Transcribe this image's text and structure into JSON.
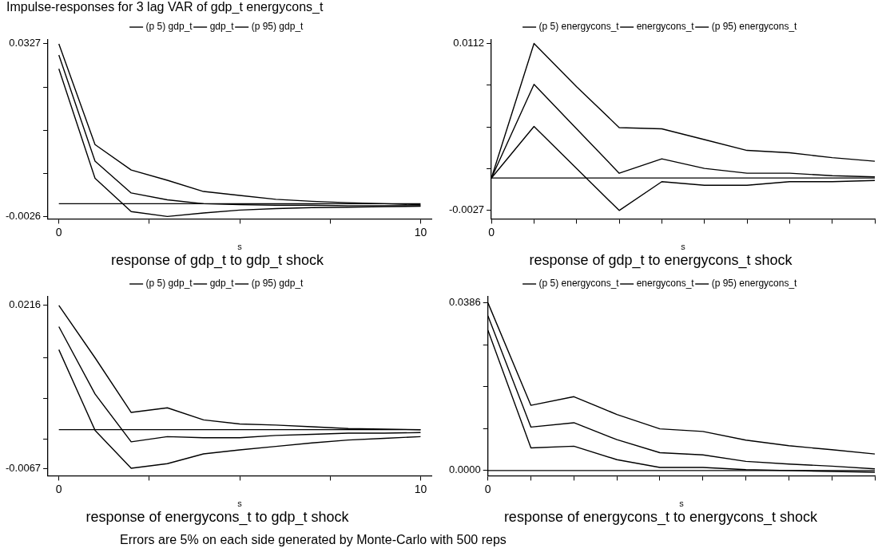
{
  "chart_data": [
    {
      "type": "line",
      "title": "response of gdp_t to gdp_t shock",
      "xlabel": "s",
      "annotations": [
        "Impulse-responses for 3 lag VAR of gdp_t energycons_t"
      ],
      "x": [
        0,
        1,
        2,
        3,
        4,
        5,
        6,
        7,
        8,
        9,
        10
      ],
      "xlim": [
        -0.3,
        10.3
      ],
      "xticks": [
        {
          "value": 0,
          "label": "0"
        },
        {
          "value": 2.5,
          "label": null
        },
        {
          "value": 5,
          "label": null
        },
        {
          "value": 7.5,
          "label": null
        },
        {
          "value": 10,
          "label": "10"
        }
      ],
      "ylim": [
        -0.0031,
        0.0335
      ],
      "yticks": [
        -0.0026,
        {
          "value": 0.006225,
          "label": null
        },
        {
          "value": 0.01505,
          "label": null
        },
        {
          "value": 0.023875,
          "label": null
        },
        0.0327
      ],
      "grid": false,
      "legend": "top",
      "marker": "none",
      "ref_lines": [
        {
          "axis": "y",
          "value": 0,
          "color": "#000000"
        }
      ],
      "series": [
        {
          "name": "(p 5) gdp_t",
          "color": "#000000",
          "values": [
            0.0276,
            0.0052,
            -0.0016,
            -0.0026,
            -0.0019,
            -0.0013,
            -0.001,
            -0.0008,
            -0.0007,
            -0.0006,
            -0.0005
          ]
        },
        {
          "name": "gdp_t",
          "color": "#000000",
          "values": [
            0.0304,
            0.0087,
            0.0022,
            0.0008,
            0.0,
            -0.0002,
            -0.0003,
            -0.0003,
            -0.0004,
            -0.0004,
            -0.0004
          ]
        },
        {
          "name": "(p 95) gdp_t",
          "color": "#000000",
          "values": [
            0.0327,
            0.0121,
            0.0069,
            0.0048,
            0.0025,
            0.0017,
            0.0009,
            0.0005,
            0.0002,
            0.0,
            -0.0002
          ]
        }
      ]
    },
    {
      "type": "line",
      "title": "response of gdp_t to energycons_t shock",
      "xlabel": "s",
      "categories": [
        "0",
        null,
        null,
        null,
        null,
        null,
        null,
        null,
        null,
        null
      ],
      "ylim": [
        -0.0034,
        0.0115
      ],
      "yticks": [
        -0.0027,
        {
          "value": 0.000775,
          "label": null
        },
        {
          "value": 0.00425,
          "label": null
        },
        {
          "value": 0.007725,
          "label": null
        },
        0.0112
      ],
      "grid": false,
      "legend": "top",
      "marker": "none",
      "ref_lines": [
        {
          "axis": "y",
          "value": 0,
          "color": "#000000"
        }
      ],
      "series": [
        {
          "name": "(p 5) energycons_t",
          "color": "#000000",
          "values": [
            0.0,
            0.0043,
            0.0008,
            -0.0027,
            -0.0003,
            -0.0006,
            -0.0006,
            -0.0003,
            -0.0003,
            -0.0002
          ]
        },
        {
          "name": "energycons_t",
          "color": "#000000",
          "values": [
            0.0,
            0.0078,
            0.0041,
            0.0004,
            0.0016,
            0.0008,
            0.0004,
            0.0004,
            0.0002,
            0.0001
          ]
        },
        {
          "name": "(p 95) energycons_t",
          "color": "#000000",
          "values": [
            0.0,
            0.0112,
            0.0076,
            0.0042,
            0.0041,
            0.0032,
            0.0023,
            0.0021,
            0.0017,
            0.0014
          ]
        }
      ]
    },
    {
      "type": "line",
      "title": "response of energycons_t to gdp_t shock",
      "xlabel": "s",
      "annotations": [
        "Errors are 5% on each side generated by Monte-Carlo with 500 reps"
      ],
      "x": [
        0,
        1,
        2,
        3,
        4,
        5,
        6,
        7,
        8,
        9,
        10
      ],
      "xlim": [
        -0.3,
        10.3
      ],
      "xticks": [
        {
          "value": 0,
          "label": "0"
        },
        {
          "value": 2.5,
          "label": null
        },
        {
          "value": 5,
          "label": null
        },
        {
          "value": 7.5,
          "label": null
        },
        {
          "value": 10,
          "label": "10"
        }
      ],
      "ylim": [
        -0.008,
        0.0231
      ],
      "yticks": [
        -0.0067,
        {
          "value": -0.001625,
          "label": null
        },
        {
          "value": 0.00545,
          "label": null
        },
        {
          "value": 0.012525,
          "label": null
        },
        0.0216
      ],
      "grid": false,
      "legend": "top",
      "marker": "none",
      "ref_lines": [
        {
          "axis": "y",
          "value": 0,
          "color": "#000000"
        }
      ],
      "series": [
        {
          "name": "(p 5) gdp_t",
          "color": "#000000",
          "values": [
            0.0139,
            -0.0001,
            -0.0067,
            -0.0059,
            -0.0042,
            -0.0035,
            -0.0029,
            -0.0023,
            -0.0018,
            -0.0015,
            -0.0012
          ]
        },
        {
          "name": "gdp_t",
          "color": "#000000",
          "values": [
            0.0179,
            0.0062,
            -0.0021,
            -0.0012,
            -0.0014,
            -0.0014,
            -0.001,
            -0.0008,
            -0.0006,
            -0.0006,
            -0.0005
          ]
        },
        {
          "name": "(p 95) gdp_t",
          "color": "#000000",
          "values": [
            0.0216,
            0.0125,
            0.003,
            0.0038,
            0.0017,
            0.001,
            0.0008,
            0.0005,
            0.0002,
            0.0001,
            0.0
          ]
        }
      ]
    },
    {
      "type": "line",
      "title": "response of energycons_t to energycons_t shock",
      "xlabel": "s",
      "categories": [
        "0",
        null,
        null,
        null,
        null,
        null,
        null,
        null,
        null,
        null
      ],
      "ylim": [
        -0.0012,
        0.04
      ],
      "yticks": [
        {
          "value": 0,
          "label": "0.0000"
        },
        {
          "value": 0.00965,
          "label": null
        },
        {
          "value": 0.0193,
          "label": null
        },
        {
          "value": 0.02895,
          "label": null
        },
        0.0386
      ],
      "grid": false,
      "legend": "top",
      "marker": "none",
      "ref_lines": [
        {
          "axis": "y",
          "value": 0,
          "color": "#000000"
        }
      ],
      "series": [
        {
          "name": "(p 5) energycons_t",
          "color": "#000000",
          "values": [
            0.0323,
            0.0052,
            0.0056,
            0.0025,
            0.0007,
            0.0007,
            0.0002,
            0.0,
            -0.0002,
            -0.0004
          ]
        },
        {
          "name": "energycons_t",
          "color": "#000000",
          "values": [
            0.0356,
            0.01,
            0.011,
            0.0071,
            0.0041,
            0.0036,
            0.0021,
            0.0015,
            0.001,
            0.0004
          ]
        },
        {
          "name": "(p 95) energycons_t",
          "color": "#000000",
          "values": [
            0.0386,
            0.015,
            0.017,
            0.0129,
            0.0096,
            0.009,
            0.007,
            0.0057,
            0.0048,
            0.0038
          ]
        }
      ]
    }
  ]
}
